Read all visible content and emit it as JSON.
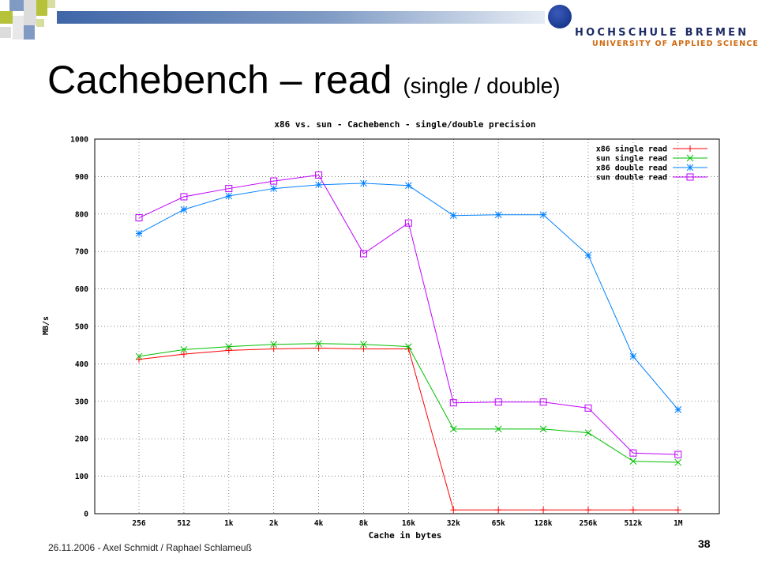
{
  "slide": {
    "title_main": "Cachebench – read ",
    "title_paren": "(single / double)",
    "footer": "26.11.2006 - Axel Schmidt / Raphael Schlameuß",
    "page_number": "38",
    "logo_name": "HOCHSCHULE BREMEN",
    "logo_sub": "UNIVERSITY OF APPLIED SCIENCES"
  },
  "chart_data": {
    "type": "line",
    "title": "x86 vs. sun - Cachebench - single/double precision",
    "xlabel": "Cache in bytes",
    "ylabel": "MB/s",
    "ylim": [
      0,
      1000
    ],
    "yticks": [
      0,
      100,
      200,
      300,
      400,
      500,
      600,
      700,
      800,
      900,
      1000
    ],
    "grid": true,
    "legend_position": "top-right",
    "categories": [
      "256",
      "512",
      "1k",
      "2k",
      "4k",
      "8k",
      "16k",
      "32k",
      "65k",
      "128k",
      "256k",
      "512k",
      "1M"
    ],
    "series": [
      {
        "name": "x86 single read",
        "color": "#ff0000",
        "marker": "plus",
        "values": [
          412,
          426,
          436,
          440,
          442,
          440,
          440,
          10,
          10,
          10,
          10,
          10,
          10
        ]
      },
      {
        "name": "sun single read",
        "color": "#00c000",
        "marker": "cross",
        "values": [
          420,
          438,
          446,
          452,
          454,
          452,
          446,
          226,
          226,
          226,
          216,
          140,
          137
        ]
      },
      {
        "name": "x86 double read",
        "color": "#0080ff",
        "marker": "star",
        "values": [
          748,
          812,
          848,
          868,
          878,
          882,
          876,
          796,
          798,
          798,
          690,
          420,
          278
        ]
      },
      {
        "name": "sun double read",
        "color": "#c000ff",
        "marker": "square",
        "values": [
          790,
          846,
          868,
          888,
          904,
          694,
          776,
          296,
          298,
          298,
          282,
          162,
          158
        ]
      }
    ]
  }
}
